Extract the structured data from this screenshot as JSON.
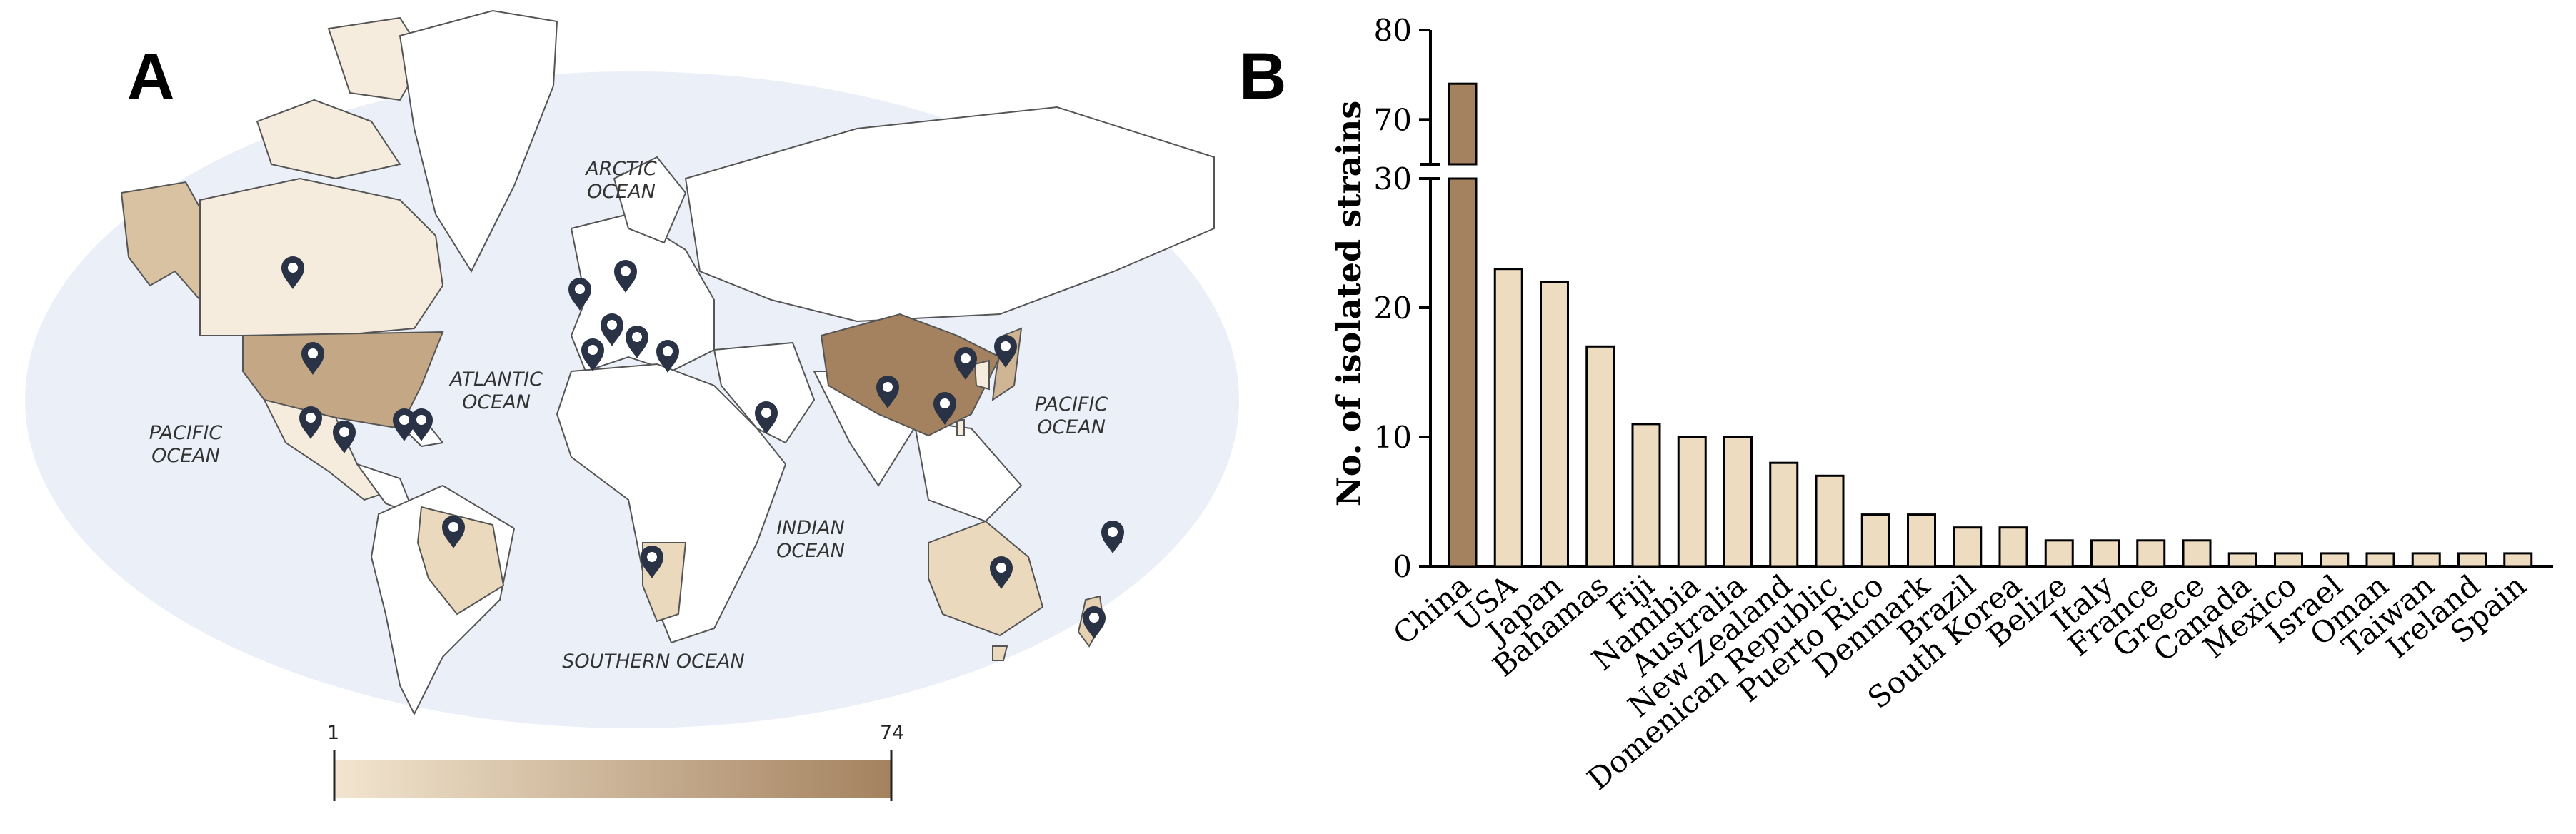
{
  "panels": {
    "a": "A",
    "b": "B"
  },
  "map": {
    "ocean_labels": [
      {
        "id": "arctic",
        "lines": [
          "ARCTIC",
          "OCEAN"
        ]
      },
      {
        "id": "atlantic",
        "lines": [
          "ATLANTIC",
          "OCEAN"
        ]
      },
      {
        "id": "pacific-west",
        "lines": [
          "PACIFIC",
          "OCEAN"
        ]
      },
      {
        "id": "pacific-east",
        "lines": [
          "PACIFIC",
          "OCEAN"
        ]
      },
      {
        "id": "indian",
        "lines": [
          "INDIAN",
          "OCEAN"
        ]
      },
      {
        "id": "southern",
        "lines": [
          "SOUTHERN OCEAN"
        ]
      }
    ],
    "color_scale": {
      "min": "1",
      "max": "74",
      "low_color": "#f2e5cf",
      "high_color": "#a4825f"
    },
    "ocean_color": "#ebeff7",
    "marker_color": "#2a3346",
    "marker_icon": "map-pin-icon"
  },
  "chart_data": {
    "type": "bar",
    "ylabel": "No. of isolated strains",
    "y_axis_break": {
      "lower": [
        0,
        30
      ],
      "upper": [
        65,
        80
      ]
    },
    "yticks_lower": [
      0,
      10,
      20,
      30
    ],
    "yticks_upper": [
      70,
      80
    ],
    "categories": [
      "China",
      "USA",
      "Japan",
      "Bahamas",
      "Fiji",
      "Namibia",
      "Australia",
      "New Zealand",
      "Domenican Republic",
      "Puerto Rico",
      "Denmark",
      "Brazil",
      "South Korea",
      "Belize",
      "Italy",
      "France",
      "Greece",
      "Canada",
      "Mexico",
      "Israel",
      "Oman",
      "Taiwan",
      "Ireland",
      "Spain"
    ],
    "values": [
      74,
      23,
      22,
      17,
      11,
      10,
      10,
      8,
      7,
      4,
      4,
      3,
      3,
      2,
      2,
      2,
      2,
      1,
      1,
      1,
      1,
      1,
      1,
      1
    ],
    "colors": {
      "max_bar": "#a4825f",
      "bar": "#eddcc0",
      "bar_stroke": "#000000"
    },
    "legend": "none",
    "grid": false
  }
}
